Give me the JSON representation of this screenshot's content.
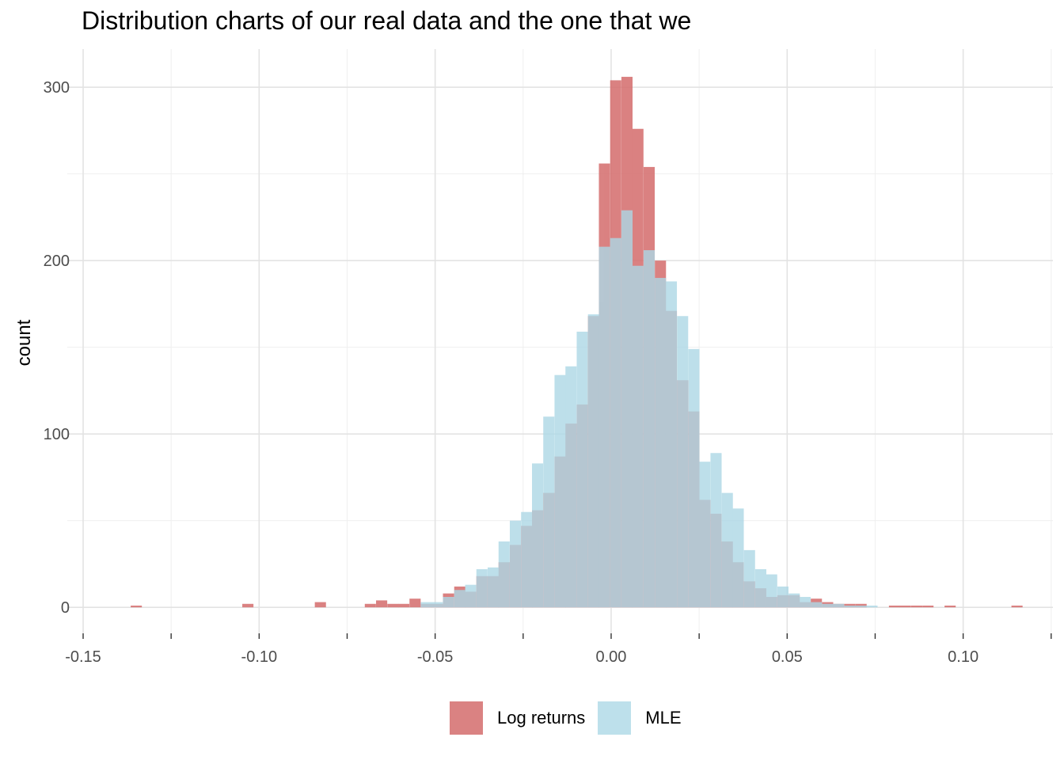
{
  "chart_data": {
    "type": "bar",
    "title": "Distribution charts of our real data and the one that we",
    "xlabel": "",
    "ylabel": "count",
    "xlim": [
      -0.1545,
      0.1255
    ],
    "ylim": [
      -15,
      322
    ],
    "x_ticks": [
      -0.15,
      -0.1,
      -0.05,
      0.0,
      0.05,
      0.1
    ],
    "x_tick_labels": [
      "-0.15",
      "-0.10",
      "-0.05",
      "0.00",
      "0.05",
      "0.10"
    ],
    "y_ticks": [
      0,
      100,
      200,
      300
    ],
    "y_tick_labels": [
      "0",
      "100",
      "200",
      "300"
    ],
    "grid": true,
    "legend_position": "bottom",
    "bin_width": 0.00317,
    "series": [
      {
        "name": "Log returns",
        "color": "#D67474",
        "bars": [
          {
            "x": -0.1349,
            "y": 1
          },
          {
            "x": -0.1032,
            "y": 2
          },
          {
            "x": -0.0826,
            "y": 3
          },
          {
            "x": -0.0684,
            "y": 2
          },
          {
            "x": -0.0652,
            "y": 4
          },
          {
            "x": -0.062,
            "y": 2
          },
          {
            "x": -0.0589,
            "y": 2
          },
          {
            "x": -0.0557,
            "y": 5
          },
          {
            "x": -0.0525,
            "y": 2
          },
          {
            "x": -0.0494,
            "y": 2
          },
          {
            "x": -0.0462,
            "y": 8
          },
          {
            "x": -0.043,
            "y": 12
          },
          {
            "x": -0.0399,
            "y": 9
          },
          {
            "x": -0.0367,
            "y": 18
          },
          {
            "x": -0.0335,
            "y": 18
          },
          {
            "x": -0.0304,
            "y": 26
          },
          {
            "x": -0.0272,
            "y": 36
          },
          {
            "x": -0.024,
            "y": 47
          },
          {
            "x": -0.0209,
            "y": 56
          },
          {
            "x": -0.0177,
            "y": 66
          },
          {
            "x": -0.0145,
            "y": 87
          },
          {
            "x": -0.0114,
            "y": 106
          },
          {
            "x": -0.0082,
            "y": 117
          },
          {
            "x": -0.005,
            "y": 168
          },
          {
            "x": -0.0019,
            "y": 256
          },
          {
            "x": 0.0013,
            "y": 304
          },
          {
            "x": 0.0045,
            "y": 306
          },
          {
            "x": 0.0076,
            "y": 276
          },
          {
            "x": 0.0108,
            "y": 254
          },
          {
            "x": 0.014,
            "y": 200
          },
          {
            "x": 0.0171,
            "y": 171
          },
          {
            "x": 0.0203,
            "y": 131
          },
          {
            "x": 0.0235,
            "y": 113
          },
          {
            "x": 0.0266,
            "y": 62
          },
          {
            "x": 0.0298,
            "y": 54
          },
          {
            "x": 0.033,
            "y": 38
          },
          {
            "x": 0.0361,
            "y": 26
          },
          {
            "x": 0.0393,
            "y": 15
          },
          {
            "x": 0.0425,
            "y": 11
          },
          {
            "x": 0.0456,
            "y": 6
          },
          {
            "x": 0.0488,
            "y": 7
          },
          {
            "x": 0.052,
            "y": 7
          },
          {
            "x": 0.0551,
            "y": 3
          },
          {
            "x": 0.0583,
            "y": 5
          },
          {
            "x": 0.0615,
            "y": 3
          },
          {
            "x": 0.0646,
            "y": 2
          },
          {
            "x": 0.0678,
            "y": 2
          },
          {
            "x": 0.071,
            "y": 2
          },
          {
            "x": 0.0805,
            "y": 1
          },
          {
            "x": 0.0836,
            "y": 1
          },
          {
            "x": 0.0868,
            "y": 1
          },
          {
            "x": 0.09,
            "y": 1
          },
          {
            "x": 0.0963,
            "y": 1
          },
          {
            "x": 0.1153,
            "y": 1
          }
        ]
      },
      {
        "name": "MLE",
        "color": "#ADD8E6",
        "bars": [
          {
            "x": -0.0525,
            "y": 3
          },
          {
            "x": -0.0494,
            "y": 3
          },
          {
            "x": -0.0462,
            "y": 6
          },
          {
            "x": -0.043,
            "y": 10
          },
          {
            "x": -0.0399,
            "y": 13
          },
          {
            "x": -0.0367,
            "y": 22
          },
          {
            "x": -0.0335,
            "y": 23
          },
          {
            "x": -0.0304,
            "y": 38
          },
          {
            "x": -0.0272,
            "y": 50
          },
          {
            "x": -0.024,
            "y": 55
          },
          {
            "x": -0.0209,
            "y": 83
          },
          {
            "x": -0.0177,
            "y": 110
          },
          {
            "x": -0.0145,
            "y": 134
          },
          {
            "x": -0.0114,
            "y": 139
          },
          {
            "x": -0.0082,
            "y": 159
          },
          {
            "x": -0.005,
            "y": 169
          },
          {
            "x": -0.0019,
            "y": 208
          },
          {
            "x": 0.0013,
            "y": 213
          },
          {
            "x": 0.0045,
            "y": 229
          },
          {
            "x": 0.0076,
            "y": 197
          },
          {
            "x": 0.0108,
            "y": 206
          },
          {
            "x": 0.014,
            "y": 190
          },
          {
            "x": 0.0171,
            "y": 188
          },
          {
            "x": 0.0203,
            "y": 168
          },
          {
            "x": 0.0235,
            "y": 149
          },
          {
            "x": 0.0266,
            "y": 84
          },
          {
            "x": 0.0298,
            "y": 89
          },
          {
            "x": 0.033,
            "y": 66
          },
          {
            "x": 0.0361,
            "y": 57
          },
          {
            "x": 0.0393,
            "y": 33
          },
          {
            "x": 0.0425,
            "y": 22
          },
          {
            "x": 0.0456,
            "y": 19
          },
          {
            "x": 0.0488,
            "y": 12
          },
          {
            "x": 0.052,
            "y": 8
          },
          {
            "x": 0.0551,
            "y": 6
          },
          {
            "x": 0.0583,
            "y": 3
          },
          {
            "x": 0.0615,
            "y": 2
          },
          {
            "x": 0.0646,
            "y": 2
          },
          {
            "x": 0.0678,
            "y": 1
          },
          {
            "x": 0.071,
            "y": 1
          },
          {
            "x": 0.0741,
            "y": 1
          }
        ]
      }
    ]
  }
}
